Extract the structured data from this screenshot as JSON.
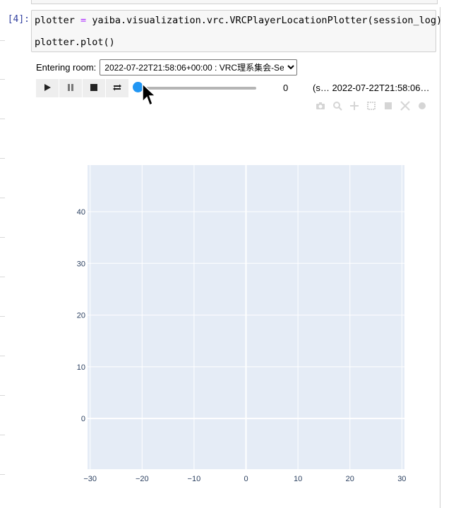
{
  "cell": {
    "prompt": "[4]:",
    "code": {
      "line1_var": "plotter",
      "line1_op": "=",
      "line1_rest": "yaiba.visualization.vrc.VRCPlayerLocationPlotter(session_log)",
      "line2": "plotter.plot()"
    }
  },
  "widget": {
    "room_label": "Entering room:",
    "room_selected": "2022-07-22T21:58:06+00:00 : VRC理系集会-Se",
    "frame_value": "0",
    "frame_timestamp": "(s…  2022-07-22T21:58:06+…",
    "slider_value": 0,
    "accent_color": "#2196f3"
  },
  "player_buttons": [
    {
      "name": "play-button",
      "icon": "play-icon"
    },
    {
      "name": "pause-button",
      "icon": "pause-icon"
    },
    {
      "name": "stop-button",
      "icon": "stop-icon"
    },
    {
      "name": "loop-button",
      "icon": "loop-icon"
    }
  ],
  "modebar_icons": [
    "camera-icon",
    "zoom-icon",
    "pan-icon",
    "box-select-icon",
    "lasso-icon",
    "autoscale-icon",
    "reset-icon"
  ],
  "chart_data": {
    "type": "scatter",
    "x": [],
    "y": [],
    "xlim": [
      -30.5,
      30.5
    ],
    "ylim": [
      -9.8,
      49.0
    ],
    "xticks": [
      -30,
      -20,
      -10,
      0,
      10,
      20,
      30
    ],
    "yticks": [
      0,
      10,
      20,
      30,
      40
    ],
    "xlabel": "",
    "ylabel": "",
    "title": "",
    "grid": true,
    "plot_bgcolor": "#e5ecf6",
    "gridcolor": "#ffffff"
  }
}
